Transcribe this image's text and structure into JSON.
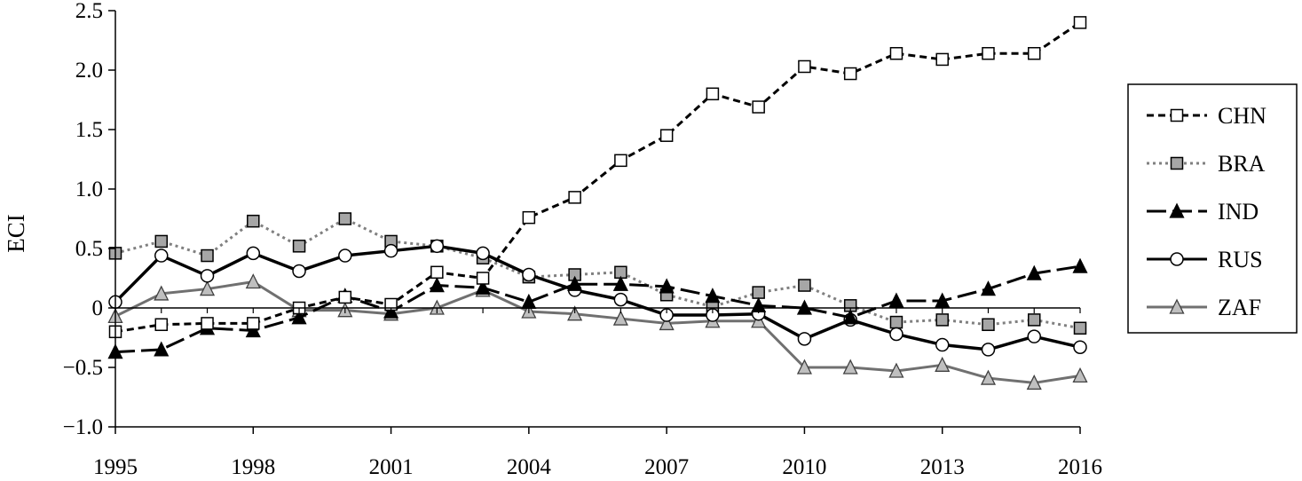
{
  "chart_data": {
    "type": "line",
    "title": "",
    "xlabel": "",
    "ylabel": "ECI",
    "x": [
      1995,
      1996,
      1997,
      1998,
      1999,
      2000,
      2001,
      2002,
      2003,
      2004,
      2005,
      2006,
      2007,
      2008,
      2009,
      2010,
      2011,
      2012,
      2013,
      2014,
      2015,
      2016
    ],
    "x_tick_labels": [
      "1995",
      "1998",
      "2001",
      "2004",
      "2007",
      "2010",
      "2013",
      "2016"
    ],
    "y_tick_labels": [
      "2.5",
      "2.0",
      "1.5",
      "1.0",
      "0.5",
      "0",
      "−0.5",
      "−1.0"
    ],
    "xlim": [
      1995,
      2016
    ],
    "ylim": [
      -1.0,
      2.5
    ],
    "grid": false,
    "legend_position": "right",
    "series": [
      {
        "name": "CHN",
        "color": "#000000",
        "line_style": "short-dash",
        "marker": "square-open",
        "values": [
          -0.2,
          -0.14,
          -0.13,
          -0.13,
          0.0,
          0.09,
          0.03,
          0.3,
          0.25,
          0.76,
          0.93,
          1.24,
          1.45,
          1.8,
          1.69,
          2.03,
          1.97,
          2.14,
          2.09,
          2.14,
          2.14,
          2.4
        ]
      },
      {
        "name": "BRA",
        "color": "#808080",
        "line_style": "dotted",
        "marker": "square-gray",
        "values": [
          0.46,
          0.56,
          0.44,
          0.73,
          0.52,
          0.75,
          0.56,
          0.52,
          0.42,
          0.26,
          0.28,
          0.3,
          0.11,
          0.01,
          0.13,
          0.19,
          0.02,
          -0.12,
          -0.1,
          -0.14,
          -0.1,
          -0.17
        ]
      },
      {
        "name": "IND",
        "color": "#000000",
        "line_style": "long-dash",
        "marker": "triangle-filled",
        "values": [
          -0.37,
          -0.35,
          -0.17,
          -0.19,
          -0.08,
          0.1,
          -0.03,
          0.19,
          0.17,
          0.05,
          0.2,
          0.2,
          0.18,
          0.1,
          0.02,
          0.0,
          -0.08,
          0.06,
          0.06,
          0.16,
          0.29,
          0.35
        ]
      },
      {
        "name": "RUS",
        "color": "#000000",
        "line_style": "solid",
        "marker": "circle-open",
        "values": [
          0.05,
          0.44,
          0.27,
          0.46,
          0.31,
          0.44,
          0.48,
          0.52,
          0.46,
          0.28,
          0.15,
          0.07,
          -0.06,
          -0.06,
          -0.05,
          -0.26,
          -0.1,
          -0.22,
          -0.31,
          -0.35,
          -0.24,
          -0.33
        ]
      },
      {
        "name": "ZAF",
        "color": "#707070",
        "line_style": "solid",
        "marker": "triangle-gray",
        "values": [
          -0.07,
          0.12,
          0.16,
          0.22,
          -0.02,
          -0.02,
          -0.05,
          0.0,
          0.15,
          -0.03,
          -0.05,
          -0.09,
          -0.13,
          -0.11,
          -0.11,
          -0.5,
          -0.5,
          -0.53,
          -0.48,
          -0.59,
          -0.63,
          -0.57
        ]
      }
    ]
  }
}
